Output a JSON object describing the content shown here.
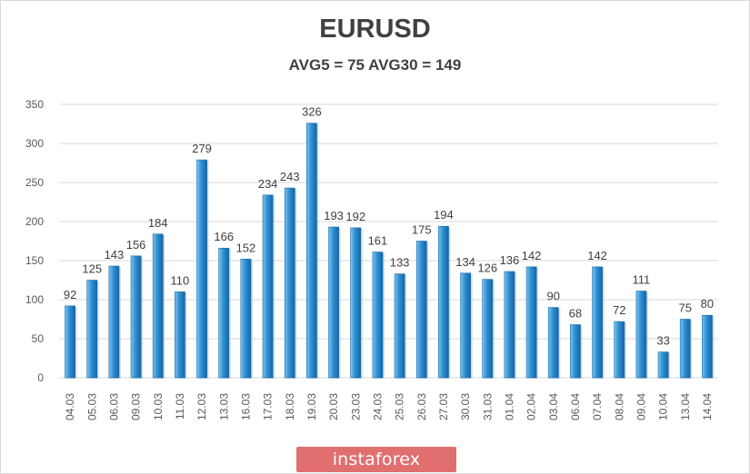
{
  "chart_data": {
    "type": "bar",
    "title": "EURUSD",
    "subtitle": "AVG5 = 75 AVG30 = 149",
    "categories": [
      "04.03",
      "05.03",
      "06.03",
      "09.03",
      "10.03",
      "11.03",
      "12.03",
      "13.03",
      "16.03",
      "17.03",
      "18.03",
      "19.03",
      "20.03",
      "23.03",
      "24.03",
      "25.03",
      "26.03",
      "27.03",
      "30.03",
      "31.03",
      "01.04",
      "02.04",
      "03.04",
      "06.04",
      "07.04",
      "08.04",
      "09.04",
      "10.04",
      "13.04",
      "14.04"
    ],
    "values": [
      92,
      125,
      143,
      156,
      184,
      110,
      279,
      166,
      152,
      234,
      243,
      326,
      193,
      192,
      161,
      133,
      175,
      194,
      134,
      126,
      136,
      142,
      90,
      68,
      142,
      72,
      111,
      33,
      75,
      80
    ],
    "ylim": [
      0,
      350
    ],
    "yticks": [
      0,
      50,
      100,
      150,
      200,
      250,
      300,
      350
    ],
    "grid": true,
    "bar_color": "#2e8fd0"
  },
  "watermark": "instaforex"
}
